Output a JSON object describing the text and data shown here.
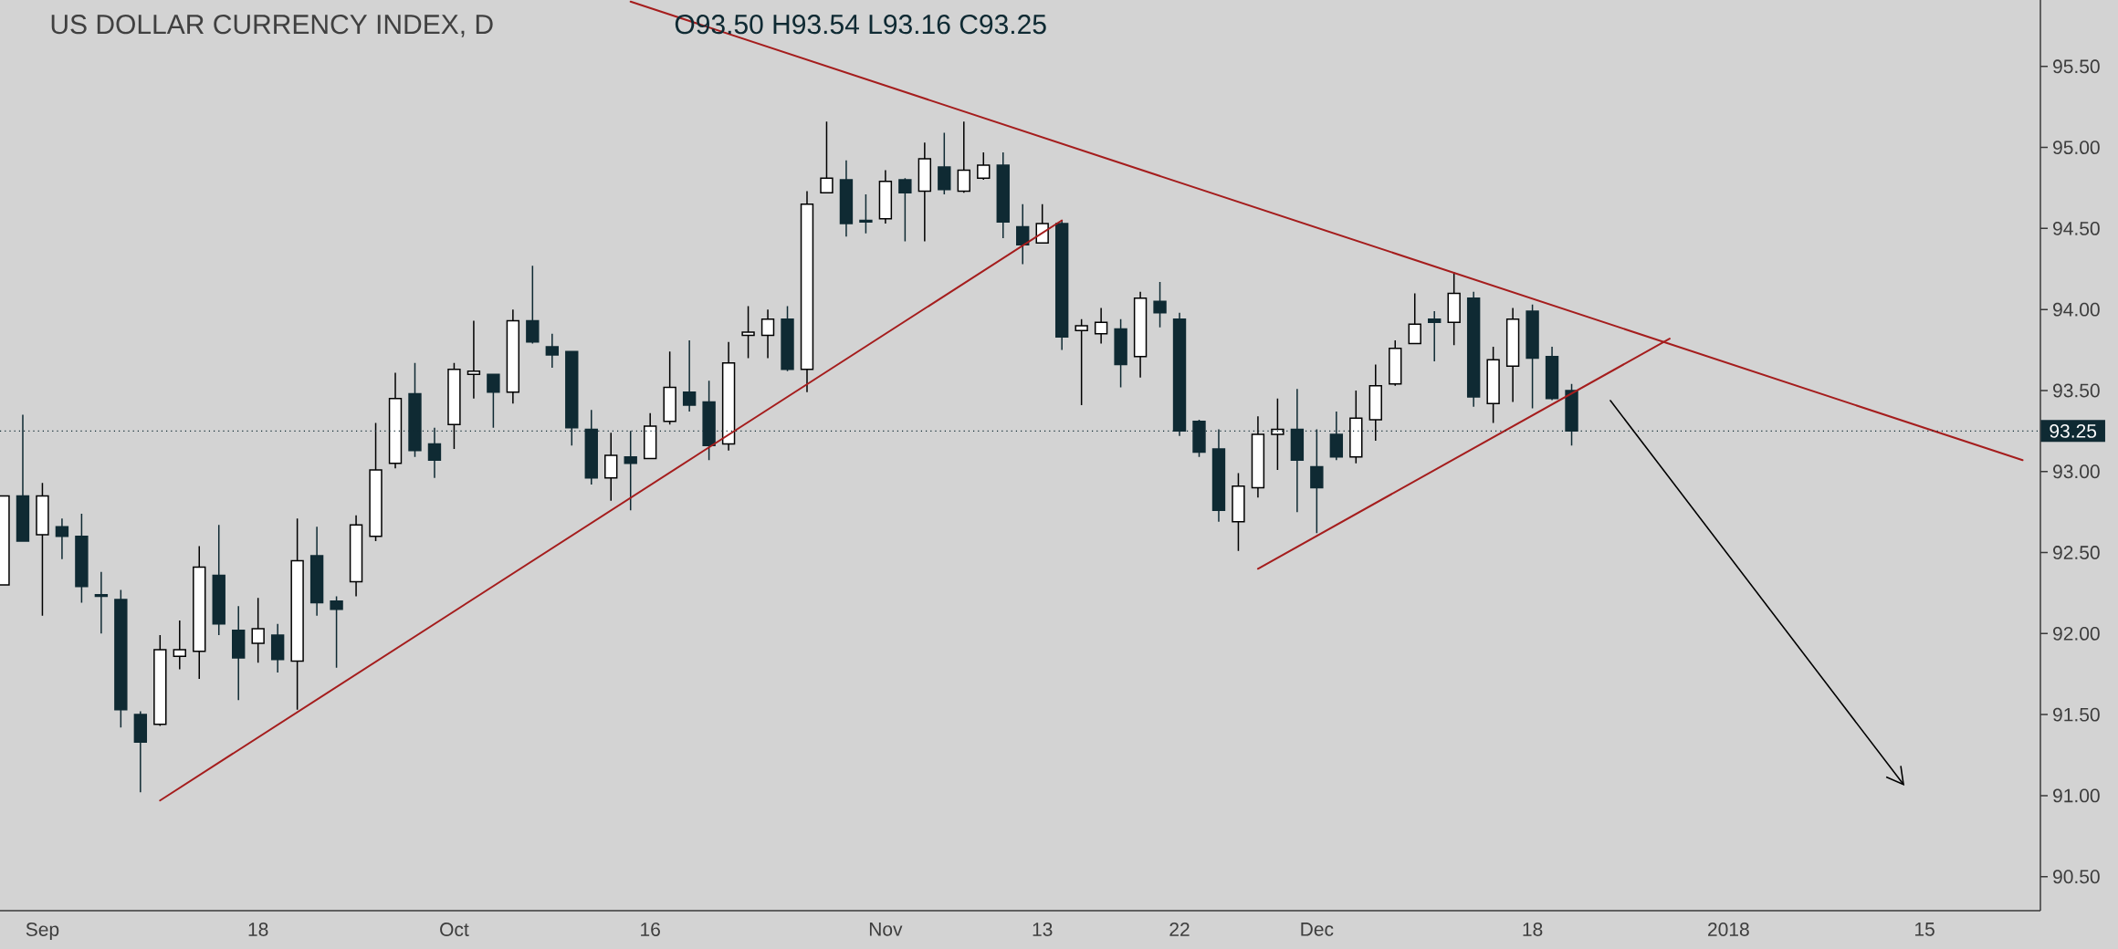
{
  "chart_data": {
    "type": "candlestick",
    "title": "US DOLLAR CURRENCY INDEX, D",
    "subtitle": "O93.50 H93.54 L93.16 C93.25",
    "categories": [
      null,
      null,
      "Sep",
      null,
      null,
      null,
      null,
      null,
      null,
      null,
      null,
      null,
      null,
      "18",
      null,
      null,
      null,
      null,
      null,
      null,
      null,
      null,
      null,
      "Oct",
      null,
      null,
      null,
      null,
      null,
      null,
      null,
      null,
      null,
      "16",
      null,
      null,
      null,
      null,
      null,
      null,
      null,
      null,
      null,
      null,
      null,
      "Nov",
      null,
      null,
      null,
      null,
      null,
      null,
      null,
      "13",
      null,
      null,
      null,
      null,
      null,
      null,
      "22",
      null,
      null,
      null,
      null,
      null,
      null,
      "Dec",
      null,
      null,
      null,
      null,
      null,
      null,
      null,
      null,
      null,
      null,
      "18",
      null,
      null,
      null,
      null,
      null,
      null,
      null,
      null,
      null,
      "2018",
      null,
      null,
      null,
      null,
      null,
      null,
      null,
      null,
      null,
      "15",
      null,
      null,
      null,
      null,
      null
    ],
    "ylim": [
      90.29,
      95.91
    ],
    "yticks": [
      {
        "value": 90.5,
        "label": "90.50"
      },
      {
        "value": 91,
        "label": "91.00"
      },
      {
        "value": 91.5,
        "label": "91.50"
      },
      {
        "value": 92,
        "label": "92.00"
      },
      {
        "value": 92.5,
        "label": "92.50"
      },
      {
        "value": 93,
        "label": "93.00"
      },
      {
        "value": 93.5,
        "label": "93.50"
      },
      {
        "value": 94,
        "label": "94.00"
      },
      {
        "value": 94.5,
        "label": "94.50"
      },
      {
        "value": 95,
        "label": "95.00"
      },
      {
        "value": 95.5,
        "label": "95.50"
      }
    ],
    "ref_lines": [
      {
        "axis": "y",
        "value": 93.25,
        "label": "93.25",
        "color": "#0f2a33",
        "line_style": "dotted"
      }
    ],
    "series": [
      {
        "ohlc": [
          [
            92.3,
            92.85,
            92.3,
            92.85
          ],
          [
            92.85,
            93.35,
            92.57,
            92.57
          ],
          [
            92.61,
            92.93,
            92.11,
            92.85
          ],
          [
            92.66,
            92.71,
            92.46,
            92.6
          ],
          [
            92.6,
            92.74,
            92.19,
            92.29
          ],
          [
            92.24,
            92.38,
            92.0,
            92.23
          ],
          [
            92.21,
            92.27,
            91.42,
            91.53
          ],
          [
            91.5,
            91.52,
            91.02,
            91.33
          ],
          [
            91.44,
            91.99,
            91.43,
            91.9
          ],
          [
            91.86,
            92.08,
            91.78,
            91.9
          ],
          [
            91.89,
            92.54,
            91.72,
            92.41
          ],
          [
            92.36,
            92.67,
            91.99,
            92.06
          ],
          [
            92.02,
            92.17,
            91.59,
            91.85
          ],
          [
            91.94,
            92.22,
            91.82,
            92.03
          ],
          [
            91.99,
            92.06,
            91.76,
            91.84
          ],
          [
            91.83,
            92.71,
            91.53,
            92.45
          ],
          [
            92.48,
            92.66,
            92.11,
            92.19
          ],
          [
            92.2,
            92.23,
            91.79,
            92.15
          ],
          [
            92.32,
            92.73,
            92.23,
            92.67
          ],
          [
            92.6,
            93.3,
            92.57,
            93.01
          ],
          [
            93.05,
            93.61,
            93.02,
            93.45
          ],
          [
            93.48,
            93.67,
            93.09,
            93.13
          ],
          [
            93.17,
            93.27,
            92.96,
            93.07
          ],
          [
            93.29,
            93.67,
            93.14,
            93.63
          ],
          [
            93.6,
            93.93,
            93.45,
            93.62
          ],
          [
            93.6,
            93.6,
            93.27,
            93.49
          ],
          [
            93.49,
            94.0,
            93.42,
            93.93
          ],
          [
            93.93,
            94.27,
            93.79,
            93.8
          ],
          [
            93.77,
            93.85,
            93.64,
            93.72
          ],
          [
            93.74,
            93.74,
            93.16,
            93.27
          ],
          [
            93.26,
            93.38,
            92.92,
            92.96
          ],
          [
            92.96,
            93.24,
            92.82,
            93.1
          ],
          [
            93.09,
            93.25,
            92.76,
            93.05
          ],
          [
            93.08,
            93.36,
            93.08,
            93.28
          ],
          [
            93.31,
            93.74,
            93.29,
            93.52
          ],
          [
            93.49,
            93.81,
            93.37,
            93.41
          ],
          [
            93.43,
            93.56,
            93.07,
            93.16
          ],
          [
            93.17,
            93.8,
            93.13,
            93.67
          ],
          [
            93.84,
            94.02,
            93.7,
            93.86
          ],
          [
            93.84,
            94.0,
            93.7,
            93.94
          ],
          [
            93.94,
            94.02,
            93.62,
            93.63
          ],
          [
            93.63,
            94.73,
            93.49,
            94.65
          ],
          [
            94.72,
            95.16,
            94.72,
            94.81
          ],
          [
            94.8,
            94.92,
            94.45,
            94.53
          ],
          [
            94.55,
            94.71,
            94.47,
            94.54
          ],
          [
            94.56,
            94.86,
            94.53,
            94.79
          ],
          [
            94.8,
            94.81,
            94.42,
            94.72
          ],
          [
            94.73,
            95.03,
            94.42,
            94.93
          ],
          [
            94.88,
            95.09,
            94.71,
            94.74
          ],
          [
            94.73,
            95.16,
            94.72,
            94.86
          ],
          [
            94.81,
            94.97,
            94.8,
            94.89
          ],
          [
            94.89,
            94.97,
            94.44,
            94.54
          ],
          [
            94.51,
            94.65,
            94.28,
            94.4
          ],
          [
            94.41,
            94.65,
            94.41,
            94.53
          ],
          [
            94.53,
            94.55,
            93.75,
            93.83
          ],
          [
            93.87,
            93.94,
            93.41,
            93.9
          ],
          [
            93.85,
            94.01,
            93.79,
            93.92
          ],
          [
            93.88,
            93.94,
            93.52,
            93.66
          ],
          [
            93.71,
            94.11,
            93.58,
            94.07
          ],
          [
            94.05,
            94.17,
            93.89,
            93.98
          ],
          [
            93.94,
            93.98,
            93.22,
            93.25
          ],
          [
            93.31,
            93.32,
            93.09,
            93.12
          ],
          [
            93.14,
            93.26,
            92.69,
            92.76
          ],
          [
            92.69,
            92.99,
            92.51,
            92.91
          ],
          [
            92.9,
            93.34,
            92.84,
            93.23
          ],
          [
            93.23,
            93.45,
            93.01,
            93.26
          ],
          [
            93.26,
            93.51,
            92.75,
            93.07
          ],
          [
            93.03,
            93.26,
            92.62,
            92.9
          ],
          [
            93.23,
            93.37,
            93.07,
            93.09
          ],
          [
            93.09,
            93.5,
            93.05,
            93.33
          ],
          [
            93.32,
            93.66,
            93.19,
            93.53
          ],
          [
            93.54,
            93.81,
            93.53,
            93.76
          ],
          [
            93.79,
            94.1,
            93.79,
            93.91
          ],
          [
            93.94,
            93.99,
            93.68,
            93.92
          ],
          [
            93.92,
            94.23,
            93.78,
            94.1
          ],
          [
            94.07,
            94.11,
            93.4,
            93.46
          ],
          [
            93.42,
            93.77,
            93.3,
            93.69
          ],
          [
            93.65,
            94.01,
            93.43,
            93.94
          ],
          [
            93.99,
            94.03,
            93.39,
            93.7
          ],
          [
            93.71,
            93.77,
            93.44,
            93.45
          ],
          [
            93.5,
            93.54,
            93.16,
            93.25
          ],
          null,
          null,
          null,
          null,
          null,
          null,
          null,
          null,
          null,
          null,
          null,
          null,
          null,
          null,
          null,
          null,
          null,
          null,
          null,
          null,
          null,
          null,
          null
        ]
      },
      {
        "type": "line",
        "color": "#a51d1d",
        "values": [
          null,
          null,
          null,
          null,
          null,
          null,
          null,
          null,
          null,
          null,
          null,
          null,
          null,
          null,
          null,
          null,
          null,
          null,
          null,
          null,
          null,
          null,
          null,
          null,
          null,
          null,
          null,
          null,
          null,
          null,
          null,
          null,
          95.9,
          null,
          null,
          null,
          null,
          null,
          null,
          null,
          null,
          null,
          null,
          null,
          null,
          null,
          null,
          null,
          null,
          null,
          null,
          null,
          null,
          null,
          null,
          null,
          null,
          null,
          null,
          null,
          null,
          null,
          null,
          null,
          null,
          null,
          null,
          null,
          null,
          null,
          null,
          null,
          null,
          null,
          null,
          null,
          null,
          null,
          null,
          null,
          null,
          null,
          null,
          null,
          null,
          null,
          null,
          null,
          null,
          null,
          null,
          null,
          null,
          null,
          null,
          null,
          null,
          null,
          null,
          null,
          null,
          null,
          null,
          93.07
        ]
      },
      {
        "type": "line",
        "color": "#a51d1d",
        "values": [
          null,
          null,
          null,
          null,
          null,
          null,
          null,
          null,
          90.97,
          null,
          null,
          null,
          null,
          null,
          null,
          null,
          null,
          null,
          null,
          null,
          null,
          null,
          null,
          null,
          null,
          null,
          null,
          null,
          null,
          null,
          null,
          null,
          null,
          null,
          null,
          null,
          null,
          null,
          null,
          null,
          null,
          null,
          null,
          null,
          null,
          null,
          null,
          null,
          null,
          null,
          null,
          null,
          null,
          null,
          94.55,
          null,
          null,
          null,
          null,
          null,
          null,
          null,
          null,
          null,
          null,
          null,
          null,
          null,
          null,
          null,
          null,
          null,
          null,
          null,
          null,
          null,
          null,
          null,
          null,
          null,
          null,
          null,
          null,
          null,
          null,
          null,
          null,
          null,
          null,
          null,
          null,
          null,
          null,
          null,
          null,
          null,
          null,
          null,
          null,
          null,
          null,
          null,
          null,
          null
        ]
      },
      {
        "type": "line",
        "color": "#a51d1d",
        "values": [
          null,
          null,
          null,
          null,
          null,
          null,
          null,
          null,
          null,
          null,
          null,
          null,
          null,
          null,
          null,
          null,
          null,
          null,
          null,
          null,
          null,
          null,
          null,
          null,
          null,
          null,
          null,
          null,
          null,
          null,
          null,
          null,
          null,
          null,
          null,
          null,
          null,
          null,
          null,
          null,
          null,
          null,
          null,
          null,
          null,
          null,
          null,
          null,
          null,
          null,
          null,
          null,
          null,
          null,
          null,
          null,
          null,
          null,
          null,
          null,
          null,
          null,
          null,
          null,
          92.4,
          null,
          null,
          null,
          null,
          null,
          null,
          null,
          null,
          null,
          null,
          null,
          null,
          null,
          null,
          null,
          null,
          null,
          null,
          null,
          null,
          93.82,
          null,
          null,
          null,
          null,
          null,
          null,
          null,
          null,
          null,
          null,
          null,
          null,
          null,
          null,
          null,
          null,
          null,
          null
        ]
      }
    ]
  }
}
